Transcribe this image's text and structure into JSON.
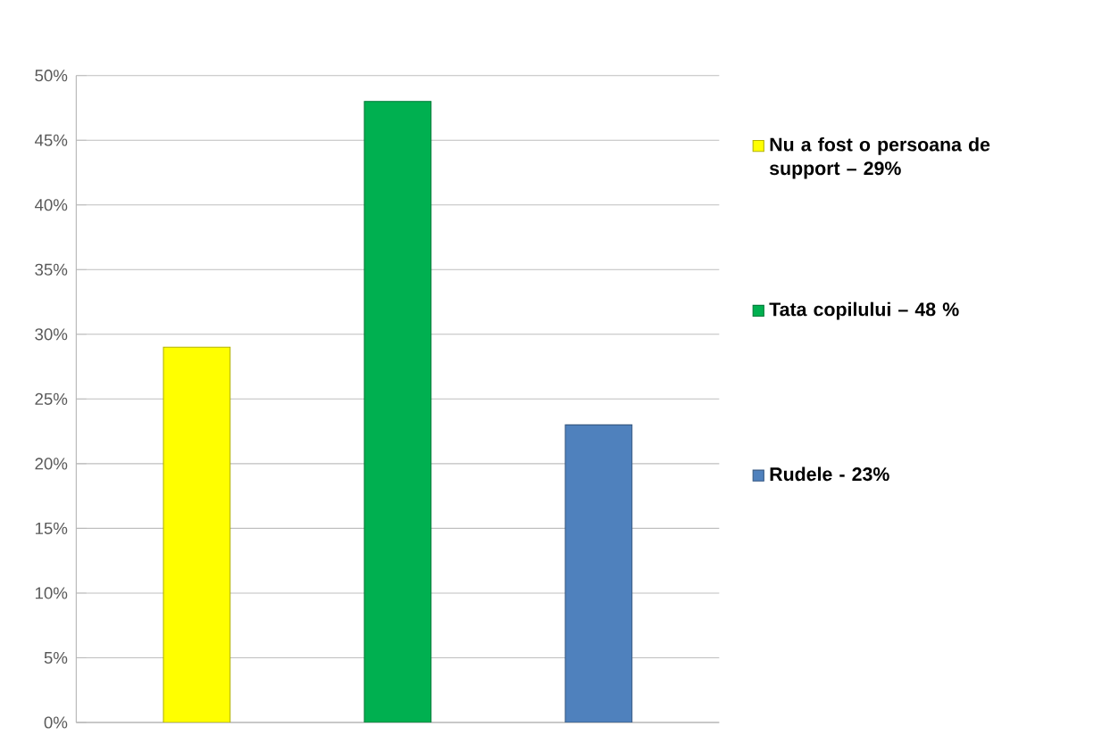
{
  "chart_data": {
    "type": "bar",
    "categories": [
      null,
      null,
      null
    ],
    "series": [
      {
        "name": "Nu a fost o persoana de support – 29%",
        "color": "#ffff00",
        "values": [
          29,
          null,
          null
        ]
      },
      {
        "name": "Tata copilului – 48 %",
        "color": "#00b050",
        "values": [
          null,
          48,
          null
        ]
      },
      {
        "name": "Rudele -  23%",
        "color": "#4f81bd",
        "values": [
          null,
          null,
          23
        ]
      }
    ],
    "ylim": [
      0,
      50
    ],
    "yticks": [
      {
        "value": 0,
        "label": "0%"
      },
      {
        "value": 5,
        "label": "5%"
      },
      {
        "value": 10,
        "label": "10%"
      },
      {
        "value": 15,
        "label": "15%"
      },
      {
        "value": 20,
        "label": "20%"
      },
      {
        "value": 25,
        "label": "25%"
      },
      {
        "value": 30,
        "label": "30%"
      },
      {
        "value": 35,
        "label": "35%"
      },
      {
        "value": 40,
        "label": "40%"
      },
      {
        "value": 45,
        "label": "45%"
      },
      {
        "value": 50,
        "label": "50%"
      }
    ],
    "grid": "y",
    "legend": "right"
  }
}
